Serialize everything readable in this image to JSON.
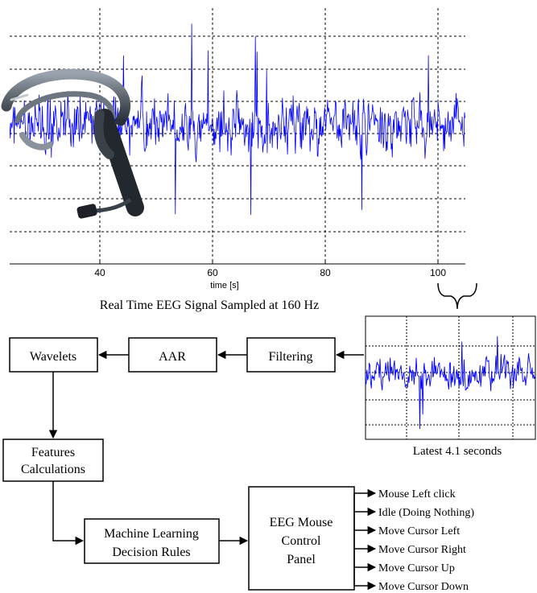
{
  "eeg_plot": {
    "x_ticks": [
      "40",
      "60",
      "80",
      "100"
    ],
    "xlabel": "time [s]",
    "caption": "Real Time EEG Signal Sampled at 160 Hz",
    "signal_color": "#0000ff"
  },
  "window_plot": {
    "caption": "Latest 4.1 seconds"
  },
  "headset": {
    "icon": "eeg-headset-icon"
  },
  "blocks": {
    "wavelets": "Wavelets",
    "aar": "AAR",
    "filtering": "Filtering",
    "features_line1": "Features",
    "features_line2": "Calculations",
    "ml_line1": "Machine Learning",
    "ml_line2": "Decision Rules",
    "panel_line1": "EEG Mouse",
    "panel_line2": "Control",
    "panel_line3": "Panel"
  },
  "outputs": [
    "Mouse Left click",
    "Idle (Doing Nothing)",
    "Move Cursor Left",
    "Move Cursor Right",
    "Move Cursor Up",
    "Move Cursor Down"
  ]
}
